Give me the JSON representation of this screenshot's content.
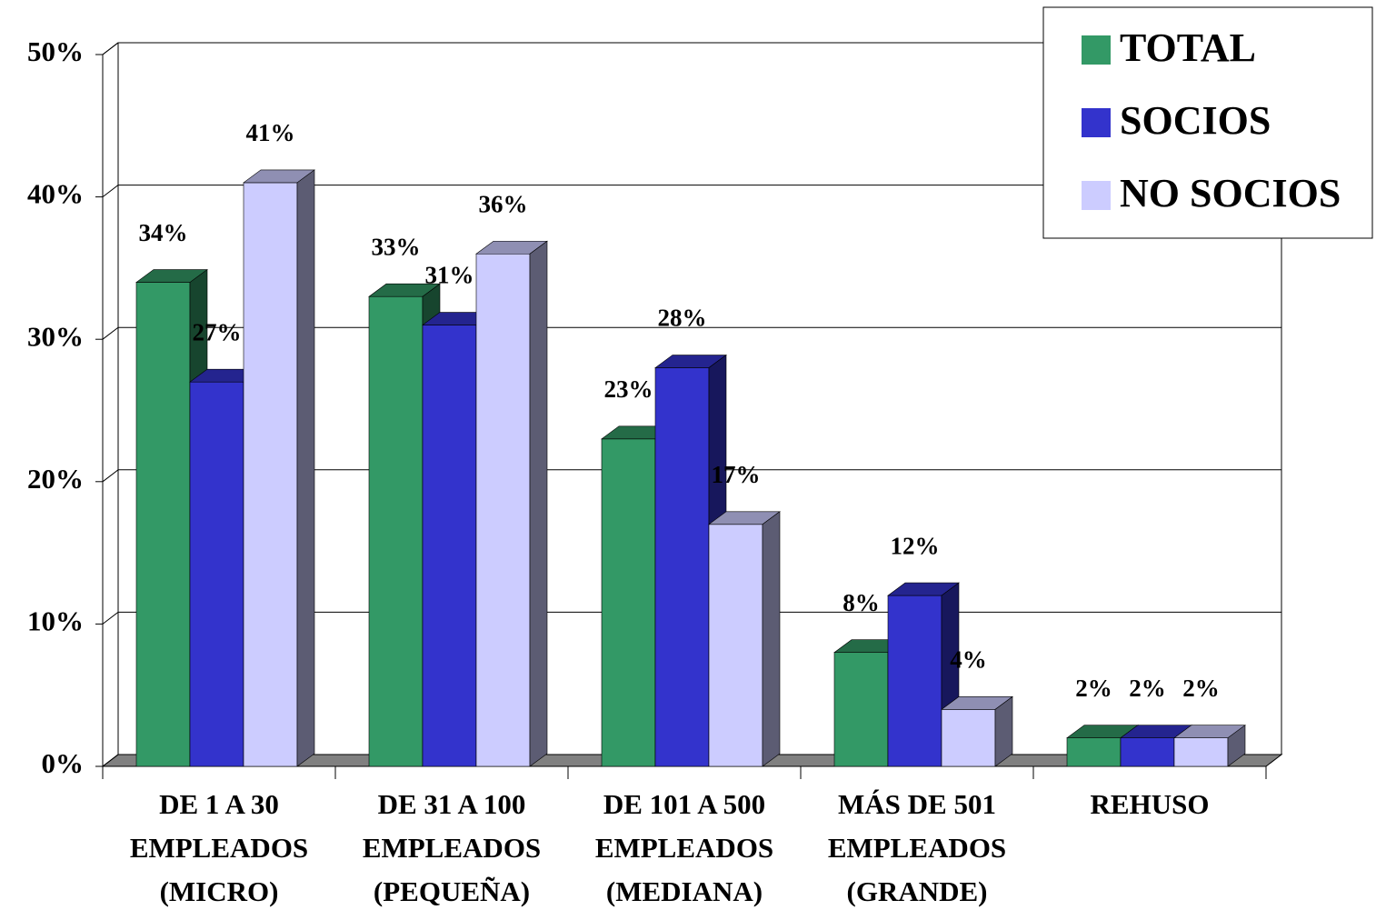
{
  "chart_data": {
    "type": "bar3d",
    "categories": [
      [
        "DE  1 A 30",
        "EMPLEADOS",
        "(MICRO)"
      ],
      [
        "DE 31 A 100",
        "EMPLEADOS",
        "(PEQUEÑA)"
      ],
      [
        "DE 101 A 500",
        "EMPLEADOS",
        "(MEDIANA)"
      ],
      [
        "MÁS DE 501",
        "EMPLEADOS",
        "(GRANDE)"
      ],
      [
        "REHUSO"
      ]
    ],
    "series": [
      {
        "name": "TOTAL",
        "color": "#339966",
        "values": [
          34,
          33,
          23,
          8,
          2
        ],
        "value_labels": [
          "34%",
          "33%",
          "23%",
          "8%",
          "2%"
        ]
      },
      {
        "name": "SOCIOS",
        "color": "#3333cc",
        "values": [
          27,
          31,
          28,
          12,
          2
        ],
        "value_labels": [
          "27%",
          "31%",
          "28%",
          "12%",
          "2%"
        ]
      },
      {
        "name": "NO SOCIOS",
        "color": "#ccccff",
        "values": [
          41,
          36,
          17,
          4,
          2
        ],
        "value_labels": [
          "41%",
          "36%",
          "17%",
          "4%",
          "2%"
        ]
      }
    ],
    "ylim": [
      0,
      50
    ],
    "yticks": [
      {
        "value": 0,
        "label": "0%"
      },
      {
        "value": 10,
        "label": "10%"
      },
      {
        "value": 20,
        "label": "20%"
      },
      {
        "value": 30,
        "label": "30%"
      },
      {
        "value": 40,
        "label": "40%"
      },
      {
        "value": 50,
        "label": "50%"
      }
    ],
    "grid": true,
    "legend": "top-right"
  }
}
